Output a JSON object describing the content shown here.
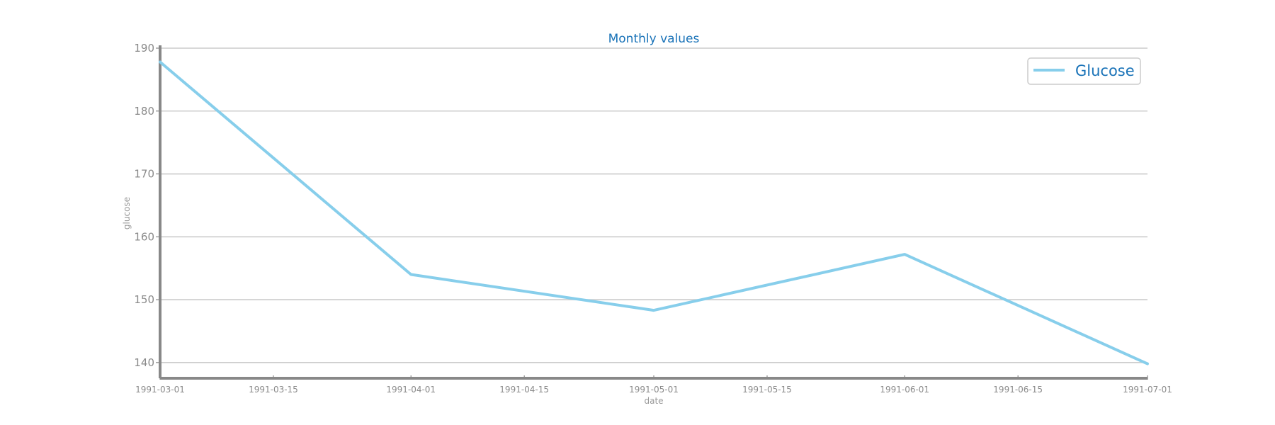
{
  "chart_data": {
    "type": "line",
    "title": "Monthly values",
    "xlabel": "date",
    "ylabel": "glucose",
    "x": [
      "1991-03-01",
      "1991-04-01",
      "1991-05-01",
      "1991-06-01",
      "1991-07-01"
    ],
    "x_ticks": [
      "1991-03-01",
      "1991-03-15",
      "1991-04-01",
      "1991-04-15",
      "1991-05-01",
      "1991-05-15",
      "1991-06-01",
      "1991-06-15",
      "1991-07-01"
    ],
    "y_ticks": [
      140,
      150,
      160,
      170,
      180,
      190
    ],
    "ylim": [
      137.5,
      190
    ],
    "xlim": [
      "1991-03-01",
      "1991-07-01"
    ],
    "grid": "horizontal",
    "legend_position": "top-right",
    "series": [
      {
        "name": "Glucose",
        "values": [
          187.8,
          154.0,
          148.3,
          157.2,
          139.8
        ],
        "color": "#87ceeb"
      }
    ],
    "colors": {
      "title": "#1a73b8",
      "legend_text": "#1a73b8",
      "axis": "#888888",
      "grid": "#cccccc",
      "tick_text": "#8a8a8a"
    }
  }
}
